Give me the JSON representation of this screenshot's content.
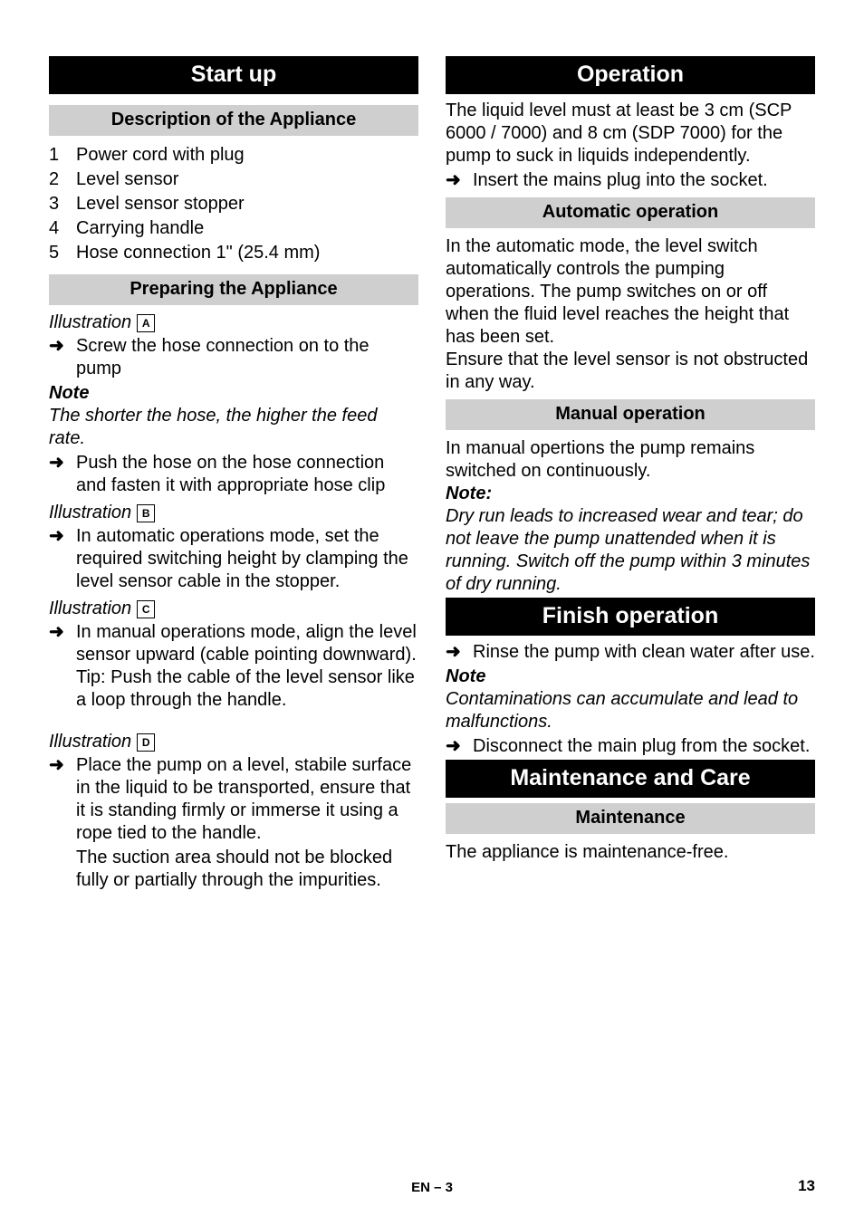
{
  "footer": {
    "label": "EN – 3",
    "pageNumber": "13"
  },
  "left": {
    "header": "Start up",
    "sections": [
      {
        "type": "gray",
        "text": "Description of the Appliance"
      },
      {
        "type": "olist",
        "items": [
          "Power cord with plug",
          "Level sensor",
          "Level sensor stopper",
          "Carrying handle",
          "Hose connection 1\" (25.4 mm)"
        ]
      },
      {
        "type": "gray",
        "text": "Preparing the Appliance"
      },
      {
        "type": "illus",
        "label": "Illustration",
        "letter": "A"
      },
      {
        "type": "arrow",
        "text": "Screw the hose connection on to the pump"
      },
      {
        "type": "bold-italic",
        "text": "Note"
      },
      {
        "type": "italic",
        "text": "The shorter the hose, the higher the feed rate."
      },
      {
        "type": "arrow",
        "text": "Push the hose on the hose connection and fasten it with appropriate hose clip"
      },
      {
        "type": "illus",
        "label": "Illustration",
        "letter": "B"
      },
      {
        "type": "arrow",
        "text": "In automatic operations mode, set the required switching height by clamping the level sensor cable in the stopper."
      },
      {
        "type": "illus",
        "label": "Illustration",
        "letter": "C"
      },
      {
        "type": "arrow",
        "text": "In manual operations mode, align the level sensor upward (cable pointing downward).  Tip: Push the cable of the level sensor like a loop through the handle."
      },
      {
        "type": "spacer"
      },
      {
        "type": "illus",
        "label": "Illustration",
        "letter": "D"
      },
      {
        "type": "arrow",
        "text": "Place the pump on a level, stabile surface in the liquid to be transported, ensure that it is standing firmly or immerse it using a rope tied to the handle."
      },
      {
        "type": "indent-text",
        "text": "The suction area should not be blocked fully or partially through the impurities."
      }
    ]
  },
  "right": {
    "sections": [
      {
        "type": "black",
        "text": "Operation"
      },
      {
        "type": "text",
        "text": "The liquid level must at least be 3 cm (SCP 6000 / 7000) and 8 cm (SDP 7000) for the pump to suck in liquids independently."
      },
      {
        "type": "arrow",
        "text": "Insert the mains plug into the socket."
      },
      {
        "type": "gray",
        "text": "Automatic operation"
      },
      {
        "type": "text",
        "text": "In the automatic mode, the level switch automatically controls the pumping operations. The pump switches on or off when the fluid level reaches the height that has been set."
      },
      {
        "type": "text",
        "text": "Ensure that the level sensor is not obstructed in any way."
      },
      {
        "type": "gray",
        "text": "Manual operation"
      },
      {
        "type": "text",
        "text": "In manual opertions the pump remains switched on continuously."
      },
      {
        "type": "bold-italic",
        "text": "Note:"
      },
      {
        "type": "italic",
        "text": "Dry run leads to increased wear and tear; do not leave the pump unattended when it is running. Switch off the pump within 3 minutes of dry running."
      },
      {
        "type": "black",
        "text": "Finish operation"
      },
      {
        "type": "arrow",
        "text": "Rinse the pump with clean water after use."
      },
      {
        "type": "bold-italic",
        "text": "Note"
      },
      {
        "type": "italic",
        "text": "Contaminations can accumulate and lead to malfunctions."
      },
      {
        "type": "arrow",
        "text": "Disconnect the main plug from the socket."
      },
      {
        "type": "black",
        "text": "Maintenance and Care"
      },
      {
        "type": "gray",
        "text": "Maintenance"
      },
      {
        "type": "text",
        "text": "The appliance is maintenance-free."
      }
    ]
  }
}
